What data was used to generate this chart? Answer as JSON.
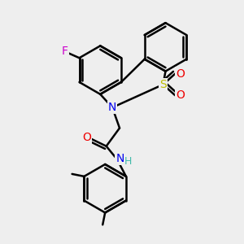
{
  "bg_color": "#eeeeee",
  "bond_color": "#000000",
  "bond_width": 1.8,
  "atom_colors": {
    "F": "#cc00cc",
    "N": "#0000ee",
    "S": "#bbbb00",
    "O": "#ee0000",
    "H": "#44bbaa",
    "C": "#000000"
  },
  "font_size": 10
}
